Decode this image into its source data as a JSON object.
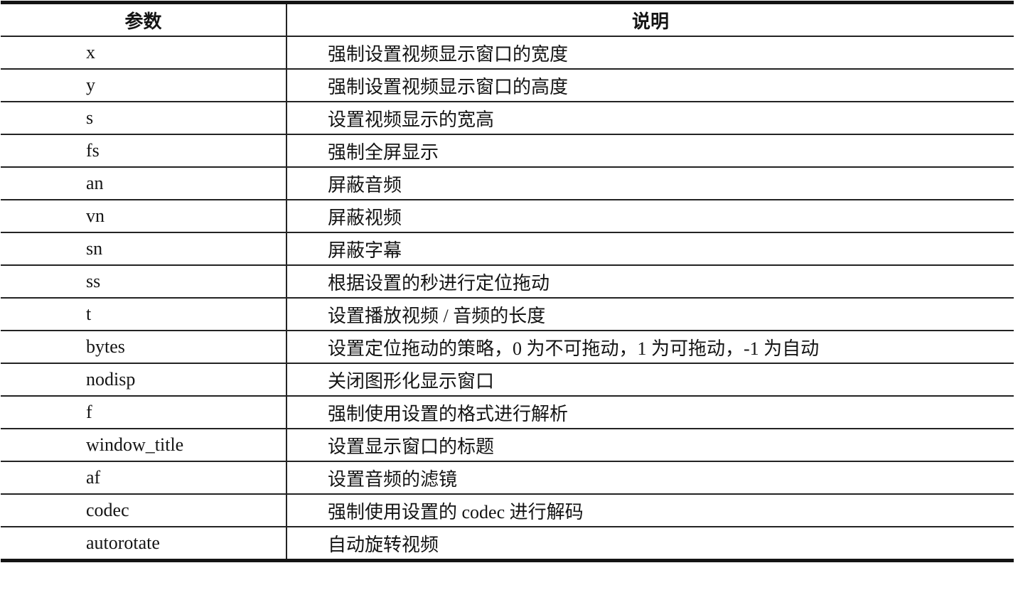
{
  "table": {
    "title_semantic": "ffplay 参数说明表",
    "header": {
      "param": "参数",
      "desc": "说明"
    },
    "rows": [
      {
        "param": "x",
        "desc": "强制设置视频显示窗口的宽度"
      },
      {
        "param": "y",
        "desc": "强制设置视频显示窗口的高度"
      },
      {
        "param": "s",
        "desc": "设置视频显示的宽高"
      },
      {
        "param": "fs",
        "desc": "强制全屏显示"
      },
      {
        "param": "an",
        "desc": "屏蔽音频"
      },
      {
        "param": "vn",
        "desc": "屏蔽视频"
      },
      {
        "param": "sn",
        "desc": "屏蔽字幕"
      },
      {
        "param": "ss",
        "desc": "根据设置的秒进行定位拖动"
      },
      {
        "param": "t",
        "desc": "设置播放视频 / 音频的长度"
      },
      {
        "param": "bytes",
        "desc": "设置定位拖动的策略，0 为不可拖动，1 为可拖动，-1 为自动"
      },
      {
        "param": "nodisp",
        "desc": "关闭图形化显示窗口"
      },
      {
        "param": "f",
        "desc": "强制使用设置的格式进行解析"
      },
      {
        "param": "window_title",
        "desc": "设置显示窗口的标题"
      },
      {
        "param": "af",
        "desc": "设置音频的滤镜"
      },
      {
        "param": "codec",
        "desc": "强制使用设置的 codec 进行解码"
      },
      {
        "param": "autorotate",
        "desc": "自动旋转视频"
      }
    ]
  },
  "colors": {
    "border": "#232323",
    "outer_border": "#141414",
    "text": "#141414",
    "background": "#ffffff"
  }
}
